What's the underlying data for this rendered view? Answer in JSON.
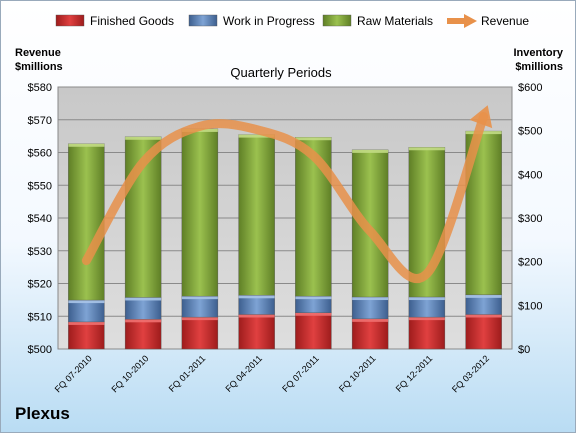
{
  "chart_data": {
    "type": "bar",
    "title": "Quarterly Periods",
    "categories": [
      "FQ 07-2010",
      "FQ 10-2010",
      "FQ 01-2011",
      "FQ 04-2011",
      "FQ 07-2011",
      "FQ 10-2011",
      "FQ 12-2011",
      "FQ 03-2012"
    ],
    "stacked": true,
    "series": [
      {
        "name": "Finished Goods",
        "color": "#c0392b",
        "values": [
          62,
          68,
          73,
          79,
          83,
          69,
          73,
          79
        ]
      },
      {
        "name": "Work in Progress",
        "color": "#4f81bd",
        "values": [
          50,
          50,
          48,
          44,
          38,
          50,
          46,
          45
        ]
      },
      {
        "name": "Raw Materials",
        "color": "#7fa33a",
        "values": [
          358,
          368,
          383,
          368,
          364,
          337,
          343,
          375
        ]
      }
    ],
    "line_series": {
      "name": "Revenue",
      "color": "#e8914a",
      "values": [
        527,
        557,
        568,
        567,
        559,
        536,
        523,
        571
      ]
    },
    "y_left": {
      "label_line1": "Revenue",
      "label_line2": "$millions",
      "min": 500,
      "max": 580,
      "step": 10,
      "prefix": "$"
    },
    "y_right": {
      "label_line1": "Inventory",
      "label_line2": "$millions",
      "min": 0,
      "max": 600,
      "step": 100,
      "prefix": "$"
    },
    "grid": true,
    "legend_position": "top"
  },
  "company": "Plexus"
}
